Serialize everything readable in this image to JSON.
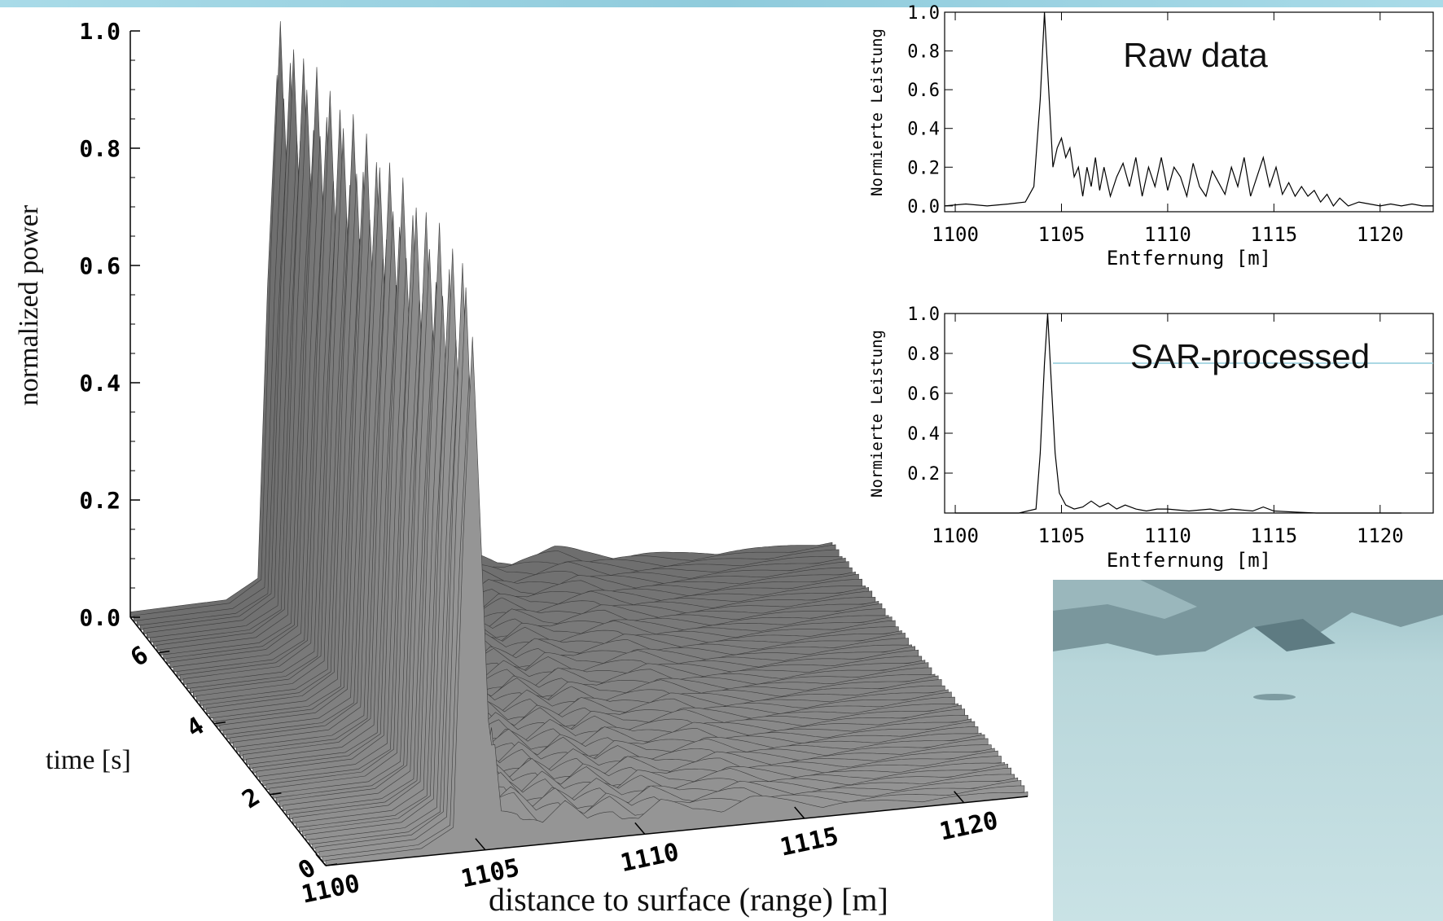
{
  "colors": {
    "band": "#95cfe0",
    "surface": "#8a8a8a",
    "ice": "#c6dfe3",
    "rock": "#6f8a90"
  },
  "chart_data": [
    {
      "id": "surface",
      "type": "area",
      "ylabel": "normalized power",
      "xlabel": "distance to surface (range) [m]",
      "tlabel": "time [s]",
      "zticks": [
        "0.0",
        "0.2",
        "0.4",
        "0.6",
        "0.8",
        "1.0"
      ],
      "xticks": [
        "1100",
        "1105",
        "1110",
        "1115",
        "1120"
      ],
      "tticks": [
        "0",
        "2",
        "4",
        "6"
      ],
      "xlim": [
        1100,
        1122
      ],
      "tlim": [
        0,
        7
      ],
      "zlim": [
        0,
        1
      ],
      "profile_x": [
        1100,
        1103,
        1104,
        1104.3,
        1104.6,
        1105.1,
        1105.5,
        1106,
        1106.8,
        1107.5,
        1108.2,
        1109,
        1109.8,
        1110.5,
        1111.5,
        1112.5,
        1113.3,
        1114.2,
        1115,
        1116,
        1117,
        1118.5,
        1120,
        1122
      ],
      "profile_z": [
        0.01,
        0.015,
        0.05,
        0.6,
        1.0,
        0.25,
        0.06,
        0.07,
        0.035,
        0.055,
        0.03,
        0.05,
        0.028,
        0.045,
        0.03,
        0.035,
        0.04,
        0.03,
        0.025,
        0.02,
        0.015,
        0.012,
        0.01,
        0.01
      ]
    },
    {
      "id": "raw",
      "type": "line",
      "title": "Raw data",
      "ylabel": "Normierte Leistung",
      "xlabel": "Entfernung [m]",
      "xticks": [
        "1100",
        "1105",
        "1110",
        "1115",
        "1120"
      ],
      "yticks": [
        "0.0",
        "0.2",
        "0.4",
        "0.6",
        "0.8",
        "1.0"
      ],
      "xlim": [
        1099.5,
        1122.5
      ],
      "ylim": [
        -0.03,
        1.0
      ],
      "x": [
        1099.5,
        1100.5,
        1101.5,
        1102.5,
        1103.3,
        1103.7,
        1104.0,
        1104.2,
        1104.4,
        1104.6,
        1104.8,
        1105.0,
        1105.2,
        1105.4,
        1105.6,
        1105.8,
        1106.0,
        1106.2,
        1106.4,
        1106.6,
        1106.8,
        1107.0,
        1107.3,
        1107.6,
        1107.9,
        1108.2,
        1108.5,
        1108.8,
        1109.1,
        1109.4,
        1109.7,
        1110.0,
        1110.3,
        1110.6,
        1110.9,
        1111.2,
        1111.5,
        1111.8,
        1112.1,
        1112.4,
        1112.7,
        1113.0,
        1113.3,
        1113.6,
        1113.9,
        1114.2,
        1114.5,
        1114.8,
        1115.1,
        1115.4,
        1115.7,
        1116.0,
        1116.3,
        1116.6,
        1116.9,
        1117.2,
        1117.5,
        1117.8,
        1118.1,
        1118.5,
        1119.0,
        1119.5,
        1120.0,
        1120.5,
        1121.0,
        1121.5,
        1122.0,
        1122.5
      ],
      "y": [
        0.0,
        0.01,
        0.0,
        0.01,
        0.02,
        0.1,
        0.55,
        1.0,
        0.6,
        0.2,
        0.3,
        0.35,
        0.25,
        0.3,
        0.15,
        0.2,
        0.05,
        0.2,
        0.1,
        0.25,
        0.08,
        0.2,
        0.05,
        0.15,
        0.22,
        0.1,
        0.25,
        0.05,
        0.2,
        0.1,
        0.25,
        0.08,
        0.2,
        0.15,
        0.05,
        0.22,
        0.1,
        0.05,
        0.18,
        0.12,
        0.06,
        0.2,
        0.1,
        0.25,
        0.05,
        0.15,
        0.25,
        0.1,
        0.2,
        0.06,
        0.12,
        0.05,
        0.1,
        0.05,
        0.08,
        0.02,
        0.06,
        0.0,
        0.04,
        0.0,
        0.02,
        0.01,
        0.0,
        0.01,
        0.0,
        0.01,
        0.0,
        0.0
      ]
    },
    {
      "id": "sar",
      "type": "line",
      "title": "SAR-processed",
      "ylabel": "Normierte Leistung",
      "xlabel": "Entfernung [m]",
      "xticks": [
        "1100",
        "1105",
        "1110",
        "1115",
        "1120"
      ],
      "yticks": [
        "0.2",
        "0.4",
        "0.6",
        "0.8",
        "1.0"
      ],
      "xlim": [
        1099.5,
        1122.5
      ],
      "ylim": [
        0.0,
        1.0
      ],
      "x": [
        1100,
        1101,
        1102,
        1103,
        1103.8,
        1104.0,
        1104.2,
        1104.35,
        1104.5,
        1104.7,
        1104.9,
        1105.2,
        1105.6,
        1106.0,
        1106.4,
        1106.8,
        1107.2,
        1107.6,
        1108.0,
        1108.5,
        1109.0,
        1109.5,
        1110.0,
        1111.0,
        1112.0,
        1112.5,
        1113.0,
        1114.0,
        1114.5,
        1115.0,
        1116.0,
        1117.0,
        1118.0,
        1119.0,
        1120.0,
        1121.0
      ],
      "y": [
        0.0,
        0.0,
        0.0,
        0.0,
        0.02,
        0.3,
        0.75,
        1.0,
        0.7,
        0.3,
        0.1,
        0.04,
        0.02,
        0.03,
        0.06,
        0.03,
        0.05,
        0.02,
        0.04,
        0.02,
        0.01,
        0.02,
        0.02,
        0.01,
        0.02,
        0.01,
        0.02,
        0.01,
        0.03,
        0.01,
        0.005,
        0.0,
        0.0,
        0.0,
        0.0,
        0.0
      ]
    }
  ]
}
